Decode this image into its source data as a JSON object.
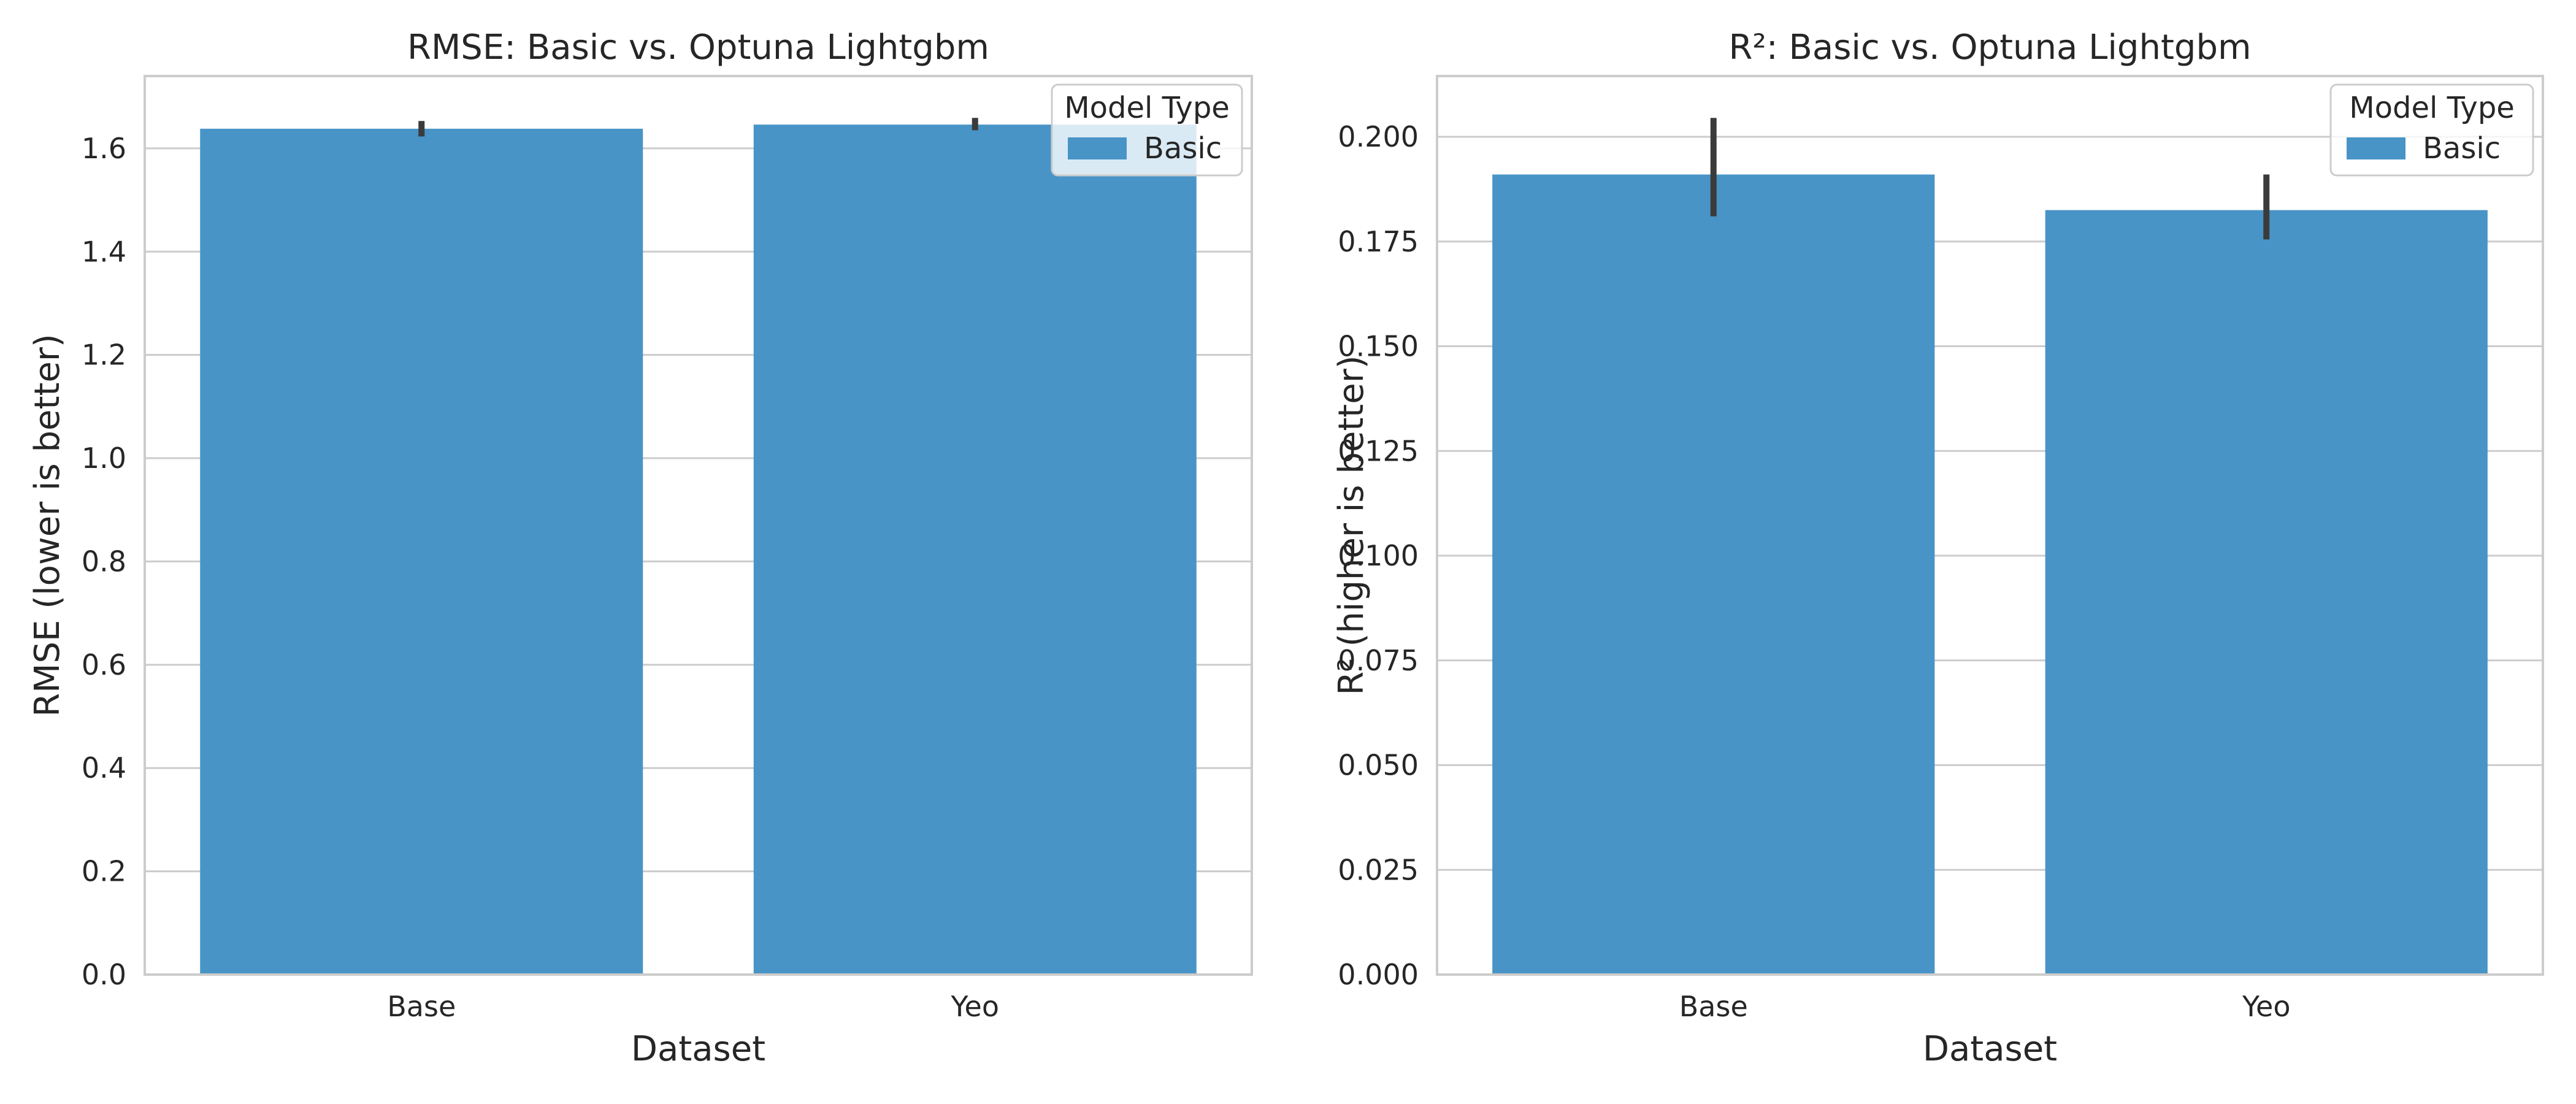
{
  "colors": {
    "bar": "#4894c7",
    "error": "#3b3b3b",
    "grid": "#cccccc"
  },
  "chart_data": [
    {
      "type": "bar",
      "title": "RMSE: Basic vs. Optuna Lightgbm",
      "xlabel": "Dataset",
      "ylabel": "RMSE (lower is better)",
      "categories": [
        "Base",
        "Yeo"
      ],
      "series": [
        {
          "name": "Basic",
          "values": [
            1.638,
            1.646
          ],
          "ci_low": [
            1.623,
            1.635
          ],
          "ci_high": [
            1.653,
            1.659
          ]
        }
      ],
      "ylim": [
        0,
        1.74
      ],
      "yticks": [
        0.0,
        0.2,
        0.4,
        0.6,
        0.8,
        1.0,
        1.2,
        1.4,
        1.6
      ],
      "ytick_labels": [
        "0.0",
        "0.2",
        "0.4",
        "0.6",
        "0.8",
        "1.0",
        "1.2",
        "1.4",
        "1.6"
      ],
      "grid": true,
      "legend": {
        "title": "Model Type",
        "placement": "top-right"
      }
    },
    {
      "type": "bar",
      "title": "R²: Basic vs. Optuna Lightgbm",
      "xlabel": "Dataset",
      "ylabel": "R² (higher is better)",
      "categories": [
        "Base",
        "Yeo"
      ],
      "series": [
        {
          "name": "Basic",
          "values": [
            0.191,
            0.1825
          ],
          "ci_low": [
            0.181,
            0.1755
          ],
          "ci_high": [
            0.2045,
            0.191
          ]
        }
      ],
      "ylim": [
        0,
        0.2145
      ],
      "yticks": [
        0.0,
        0.025,
        0.05,
        0.075,
        0.1,
        0.125,
        0.15,
        0.175,
        0.2
      ],
      "ytick_labels": [
        "0.000",
        "0.025",
        "0.050",
        "0.075",
        "0.100",
        "0.125",
        "0.150",
        "0.175",
        "0.200"
      ],
      "grid": true,
      "legend": {
        "title": "Model Type",
        "placement": "top-right"
      }
    }
  ]
}
